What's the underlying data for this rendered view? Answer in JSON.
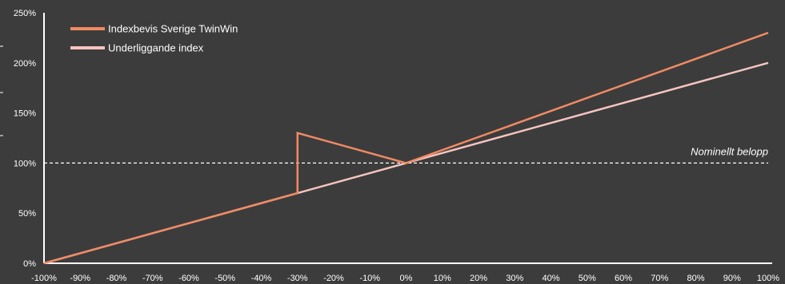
{
  "chart_data": {
    "type": "line",
    "title": "",
    "xlabel": "",
    "ylabel": "",
    "xlim": [
      -100,
      100
    ],
    "ylim": [
      0,
      250
    ],
    "x_ticks": [
      -100,
      -90,
      -80,
      -70,
      -60,
      -50,
      -40,
      -30,
      -20,
      -10,
      0,
      10,
      20,
      30,
      40,
      50,
      60,
      70,
      80,
      90,
      100
    ],
    "x_tick_labels": [
      "-100%",
      "-90%",
      "-80%",
      "-70%",
      "-60%",
      "-50%",
      "-40%",
      "-30%",
      "-20%",
      "-10%",
      "0%",
      "10%",
      "20%",
      "30%",
      "40%",
      "50%",
      "60%",
      "70%",
      "80%",
      "90%",
      "100%"
    ],
    "y_ticks": [
      0,
      50,
      100,
      150,
      200,
      250
    ],
    "y_tick_labels": [
      "0%",
      "50%",
      "100%",
      "150%",
      "200%",
      "250%"
    ],
    "grid": false,
    "legend_position": "top-left",
    "series": [
      {
        "name": "Indexbevis Sverige TwinWin",
        "color": "#f08a64",
        "points": [
          [
            -100,
            0
          ],
          [
            -30,
            70
          ],
          [
            -30,
            130
          ],
          [
            0,
            100
          ],
          [
            100,
            230
          ]
        ]
      },
      {
        "name": "Underliggande index",
        "color": "#f6c5c0",
        "points": [
          [
            -100,
            0
          ],
          [
            0,
            100
          ],
          [
            100,
            200
          ]
        ]
      }
    ],
    "reference_line": {
      "y": 100,
      "style": "dashed",
      "color": "#ffffff",
      "label": "Nominellt belopp"
    }
  }
}
